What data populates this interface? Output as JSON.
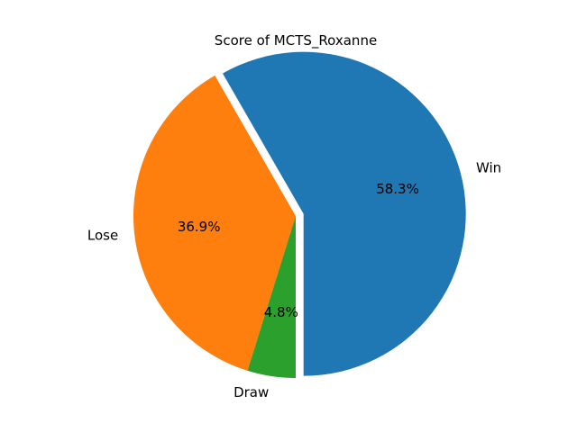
{
  "chart_data": {
    "type": "pie",
    "title": "Score of MCTS_Roxanne",
    "labels": [
      "Win",
      "Lose",
      "Draw"
    ],
    "values": [
      58.3,
      36.9,
      4.8
    ],
    "percent_labels": [
      "58.3%",
      "36.9%",
      "4.8%"
    ],
    "colors": [
      "#1f77b4",
      "#ff7f0e",
      "#2ca02c"
    ],
    "explode": [
      0.05,
      0,
      0
    ],
    "start_angle_deg": 270,
    "direction": "counterclockwise",
    "legend": "none"
  }
}
